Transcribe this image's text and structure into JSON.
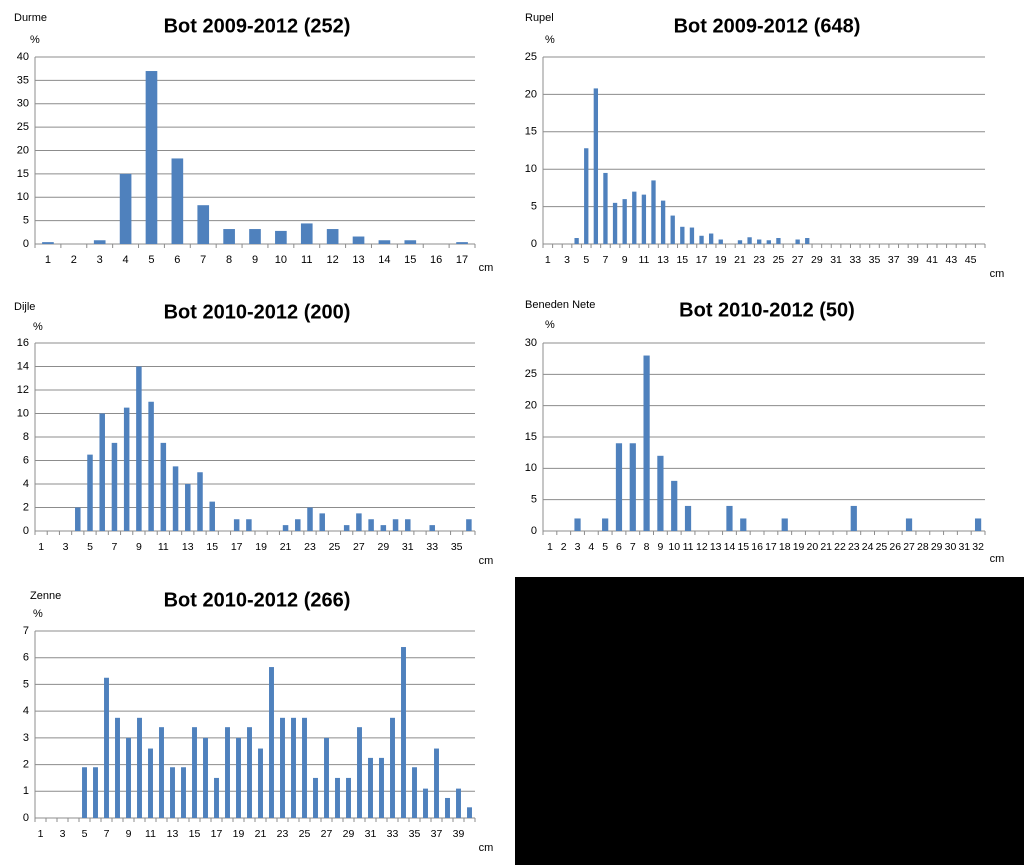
{
  "chart_data": [
    {
      "type": "bar",
      "title": "Bot 2009-2012 (252)",
      "location": "Durme",
      "y_label": "%",
      "x_label": "cm",
      "color": "#4f81bd",
      "grid": true,
      "categories": [
        1,
        2,
        3,
        4,
        5,
        6,
        7,
        8,
        9,
        10,
        11,
        12,
        13,
        14,
        15,
        16,
        17
      ],
      "values": [
        0.4,
        0,
        0.8,
        15,
        37,
        18.3,
        8.3,
        3.2,
        3.2,
        2.8,
        4.4,
        3.2,
        1.6,
        0.8,
        0.8,
        0,
        0.4
      ],
      "ylim": [
        0,
        40
      ],
      "yticks": [
        0,
        5,
        10,
        15,
        20,
        25,
        30,
        35,
        40
      ]
    },
    {
      "type": "bar",
      "title": "Bot 2009-2012 (648)",
      "location": "Rupel",
      "y_label": "%",
      "x_label": "cm",
      "color": "#4f81bd",
      "grid": true,
      "categories": [
        1,
        null,
        3,
        null,
        5,
        null,
        7,
        null,
        9,
        null,
        11,
        null,
        13,
        null,
        15,
        null,
        17,
        null,
        19,
        null,
        21,
        null,
        23,
        null,
        25,
        null,
        27,
        null,
        29,
        null,
        31,
        null,
        33,
        null,
        35,
        null,
        37,
        null,
        39,
        null,
        41,
        null,
        43,
        null,
        45,
        null
      ],
      "values": [
        0,
        0,
        0,
        0.8,
        12.8,
        20.8,
        9.5,
        5.5,
        6,
        7,
        6.6,
        8.5,
        5.8,
        3.8,
        2.3,
        2.2,
        1.1,
        1.4,
        0.6,
        0,
        0.5,
        0.9,
        0.6,
        0.5,
        0.8,
        0,
        0.6,
        0.8,
        0,
        0,
        0,
        0,
        0,
        0,
        0,
        0,
        0,
        0,
        0,
        0,
        0,
        0,
        0,
        0,
        0,
        0
      ],
      "ylim": [
        0,
        25
      ],
      "yticks": [
        0,
        5,
        10,
        15,
        20,
        25
      ]
    },
    {
      "type": "bar",
      "title": "Bot 2010-2012 (200)",
      "location": "Dijle",
      "y_label": "%",
      "x_label": "cm",
      "color": "#4f81bd",
      "grid": true,
      "categories": [
        1,
        null,
        3,
        null,
        5,
        null,
        7,
        null,
        9,
        null,
        11,
        null,
        13,
        null,
        15,
        null,
        17,
        null,
        19,
        null,
        21,
        null,
        23,
        null,
        25,
        null,
        27,
        null,
        29,
        null,
        31,
        null,
        33,
        null,
        35,
        null
      ],
      "values": [
        0,
        0,
        0,
        2,
        6.5,
        10,
        7.5,
        10.5,
        14,
        11,
        7.5,
        5.5,
        4,
        5,
        2.5,
        0,
        1,
        1,
        0,
        0,
        0.5,
        1,
        2,
        1.5,
        0,
        0.5,
        1.5,
        1,
        0.5,
        1,
        1,
        0,
        0.5,
        0,
        0,
        1
      ],
      "ylim": [
        0,
        16
      ],
      "yticks": [
        0,
        2,
        4,
        6,
        8,
        10,
        12,
        14,
        16
      ]
    },
    {
      "type": "bar",
      "title": "Bot 2010-2012 (50)",
      "location": "Beneden Nete",
      "y_label": "%",
      "x_label": "cm",
      "color": "#4f81bd",
      "grid": true,
      "categories": [
        1,
        2,
        3,
        4,
        5,
        6,
        7,
        8,
        9,
        10,
        11,
        12,
        13,
        14,
        15,
        16,
        17,
        18,
        19,
        20,
        21,
        22,
        23,
        24,
        25,
        26,
        27,
        28,
        29,
        30,
        31,
        32
      ],
      "values": [
        0,
        0,
        2,
        0,
        2,
        14,
        14,
        28,
        12,
        8,
        4,
        0,
        0,
        4,
        2,
        0,
        0,
        2,
        0,
        0,
        0,
        0,
        4,
        0,
        0,
        0,
        2,
        0,
        0,
        0,
        0,
        2
      ],
      "ylim": [
        0,
        30
      ],
      "yticks": [
        0,
        5,
        10,
        15,
        20,
        25,
        30
      ]
    },
    {
      "type": "bar",
      "title": "Bot 2010-2012 (266)",
      "location": "Zenne",
      "y_label": "%",
      "x_label": "cm",
      "color": "#4f81bd",
      "grid": true,
      "categories": [
        1,
        null,
        3,
        null,
        5,
        null,
        7,
        null,
        9,
        null,
        11,
        null,
        13,
        null,
        15,
        null,
        17,
        null,
        19,
        null,
        21,
        null,
        23,
        null,
        25,
        null,
        27,
        null,
        29,
        null,
        31,
        null,
        33,
        null,
        35,
        null,
        37,
        null,
        39,
        null
      ],
      "values": [
        0,
        0,
        0,
        0,
        1.9,
        1.9,
        5.25,
        3.75,
        3,
        3.75,
        2.6,
        3.4,
        1.9,
        1.9,
        3.4,
        3,
        1.5,
        3.4,
        3,
        3.4,
        2.6,
        5.65,
        3.75,
        3.75,
        3.75,
        1.5,
        3,
        1.5,
        1.5,
        3.4,
        2.25,
        2.25,
        3.75,
        6.4,
        1.9,
        1.1,
        2.6,
        0.75,
        1.1,
        0.4
      ],
      "ylim": [
        0,
        7
      ],
      "yticks": [
        0,
        1,
        2,
        3,
        4,
        5,
        6,
        7
      ]
    }
  ]
}
